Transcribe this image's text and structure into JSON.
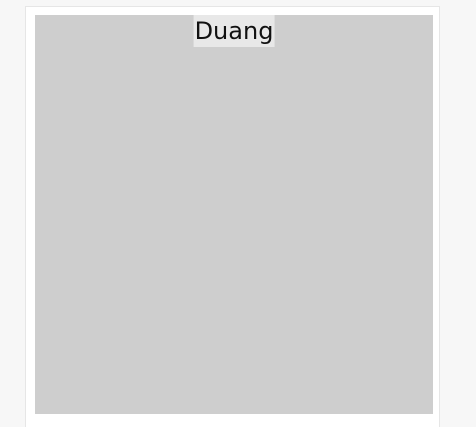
{
  "demo": {
    "label": "Duang"
  },
  "colors": {
    "page_background": "#f7f7f7",
    "card_background": "#ffffff",
    "box_background": "#cecece",
    "label_background": "#e8e8e8",
    "text": "#111111"
  }
}
